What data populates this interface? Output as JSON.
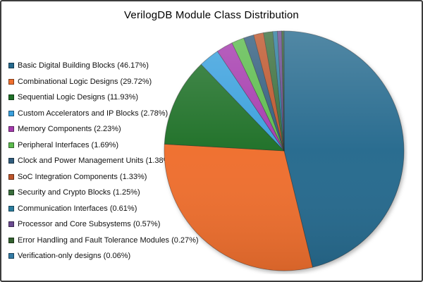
{
  "title": "VerilogDB Module Class Distribution",
  "chart_data": {
    "type": "pie",
    "title": "VerilogDB Module Class Distribution",
    "legend_position": "left",
    "start_angle_deg": -90,
    "direction": "clockwise",
    "labels": [
      "Basic Digital Building Blocks",
      "Combinational Logic Designs",
      "Sequential Logic Designs",
      "Custom Accelerators and IP Blocks",
      "Memory Components",
      "Peripheral Interfaces",
      "Clock and Power Management Units",
      "SoC Integration Components",
      "Security and Crypto Blocks",
      "Communication Interfaces",
      "Processor and Core Subsystems",
      "Error Handling and Fault Tolerance Modules",
      "Verification-only designs"
    ],
    "values": [
      46.17,
      29.72,
      11.93,
      2.78,
      2.23,
      1.69,
      1.38,
      1.33,
      1.25,
      0.61,
      0.57,
      0.27,
      0.06
    ],
    "colors": [
      "#266A8E",
      "#EF6F2E",
      "#1E7027",
      "#3AA0DD",
      "#A53BAE",
      "#5CBB4D",
      "#315D7E",
      "#BD552B",
      "#3A6E3C",
      "#2B7D9E",
      "#6A4A90",
      "#33612F",
      "#337BA5"
    ],
    "legend_items": [
      "Basic Digital Building Blocks (46.17%)",
      "Combinational Logic Designs (29.72%)",
      "Sequential Logic Designs (11.93%)",
      "Custom Accelerators and IP Blocks (2.78%)",
      "Memory Components (2.23%)",
      "Peripheral Interfaces (1.69%)",
      "Clock and Power Management Units (1.38%)",
      "SoC Integration Components (1.33%)",
      "Security and Crypto Blocks (1.25%)",
      "Communication Interfaces (0.61%)",
      "Processor and Core Subsystems (0.57%)",
      "Error Handling and Fault Tolerance Modules (0.27%)",
      "Verification-only designs (0.06%)"
    ]
  }
}
